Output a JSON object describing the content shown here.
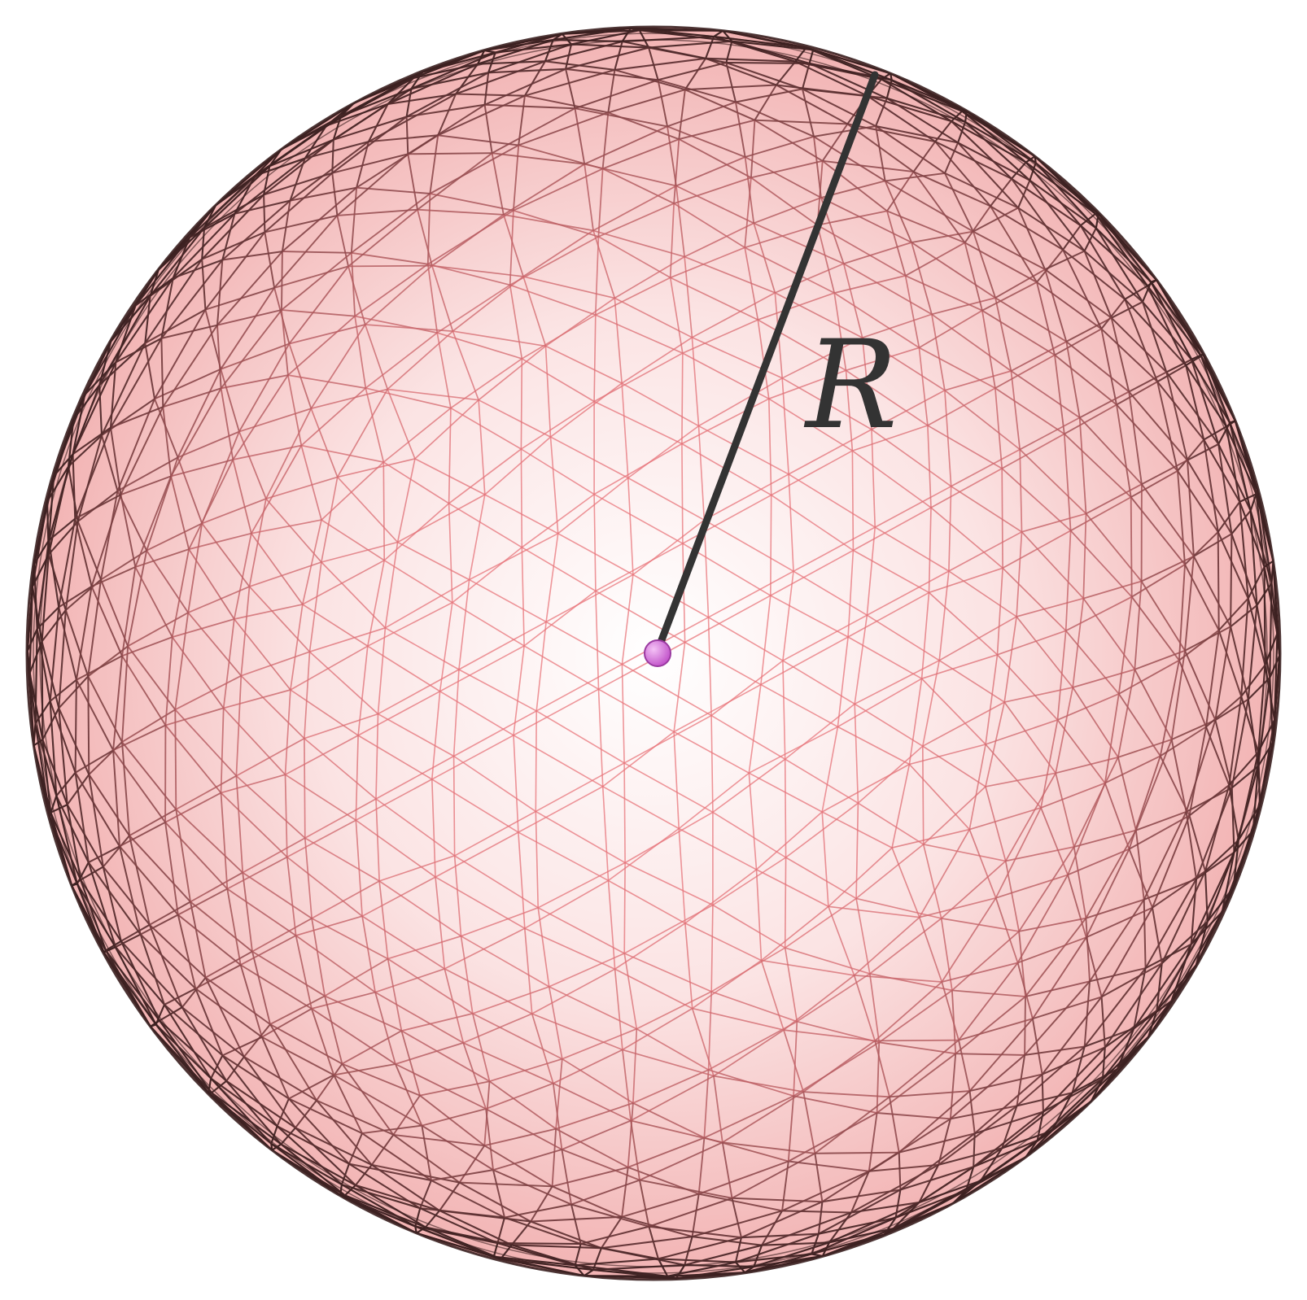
{
  "diagram": {
    "radius_label": "R",
    "colors": {
      "background": "#ffffff",
      "mesh_inner": "#e8747a",
      "mesh_outer": "#3a2020",
      "fill_center": "#ffffff",
      "fill_edge": "#f2b3b3",
      "radius_line": "#333333",
      "center_point": "#c050c8"
    }
  }
}
